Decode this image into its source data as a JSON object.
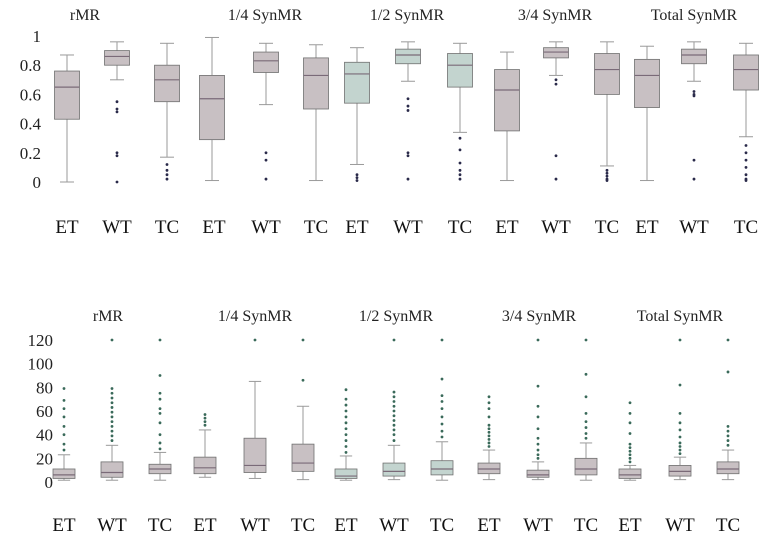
{
  "colors": {
    "box_fill": "#c8c0c3",
    "box_fill_alt": "#c3d4cf",
    "box_stroke": "#707070",
    "median": "#7a6a78",
    "whisker": "#9a9a9a",
    "outlier_top": "#2a2a4a",
    "outlier_bottom": "#3a6a5a"
  },
  "chart_data": [
    {
      "type": "boxplot",
      "name": "top-panel",
      "ylim": [
        0,
        1
      ],
      "yticks": [
        "0",
        "0.2",
        "0.4",
        "0.6",
        "0.8",
        "1"
      ],
      "ytick_values": [
        0,
        0.2,
        0.4,
        0.6,
        0.8,
        1
      ],
      "groups": [
        "rMR",
        "1/4 SynMR",
        "1/2 SynMR",
        "3/4 SynMR",
        "Total SynMR"
      ],
      "categories": [
        "ET",
        "WT",
        "TC"
      ],
      "boxes": [
        {
          "group": "rMR",
          "cat": "ET",
          "min": 0.0,
          "q1": 0.43,
          "median": 0.65,
          "q3": 0.76,
          "max": 0.87,
          "outliers": [],
          "alt": false
        },
        {
          "group": "rMR",
          "cat": "WT",
          "min": 0.7,
          "q1": 0.8,
          "median": 0.86,
          "q3": 0.9,
          "max": 0.96,
          "outliers": [
            0.5,
            0.48,
            0.55,
            0.2,
            0.18,
            0.0
          ],
          "alt": false
        },
        {
          "group": "rMR",
          "cat": "TC",
          "min": 0.17,
          "q1": 0.55,
          "median": 0.7,
          "q3": 0.8,
          "max": 0.95,
          "outliers": [
            0.12,
            0.08,
            0.05,
            0.02
          ],
          "alt": false
        },
        {
          "group": "1/4 SynMR",
          "cat": "ET",
          "min": 0.01,
          "q1": 0.29,
          "median": 0.57,
          "q3": 0.73,
          "max": 0.99,
          "outliers": [],
          "alt": false
        },
        {
          "group": "1/4 SynMR",
          "cat": "WT",
          "min": 0.53,
          "q1": 0.75,
          "median": 0.83,
          "q3": 0.89,
          "max": 0.95,
          "outliers": [
            0.2,
            0.15,
            0.02
          ],
          "alt": false
        },
        {
          "group": "1/4 SynMR",
          "cat": "TC",
          "min": 0.01,
          "q1": 0.5,
          "median": 0.73,
          "q3": 0.85,
          "max": 0.94,
          "outliers": [],
          "alt": false
        },
        {
          "group": "1/2 SynMR",
          "cat": "ET",
          "min": 0.12,
          "q1": 0.54,
          "median": 0.74,
          "q3": 0.82,
          "max": 0.92,
          "outliers": [
            0.05,
            0.03,
            0.01
          ],
          "alt": true
        },
        {
          "group": "1/2 SynMR",
          "cat": "WT",
          "min": 0.69,
          "q1": 0.81,
          "median": 0.87,
          "q3": 0.91,
          "max": 0.96,
          "outliers": [
            0.57,
            0.52,
            0.49,
            0.2,
            0.18,
            0.02
          ],
          "alt": true
        },
        {
          "group": "1/2 SynMR",
          "cat": "TC",
          "min": 0.34,
          "q1": 0.65,
          "median": 0.8,
          "q3": 0.88,
          "max": 0.95,
          "outliers": [
            0.3,
            0.22,
            0.13,
            0.08,
            0.05,
            0.02
          ],
          "alt": true
        },
        {
          "group": "3/4 SynMR",
          "cat": "ET",
          "min": 0.01,
          "q1": 0.35,
          "median": 0.63,
          "q3": 0.77,
          "max": 0.89,
          "outliers": [],
          "alt": false
        },
        {
          "group": "3/4 SynMR",
          "cat": "WT",
          "min": 0.73,
          "q1": 0.85,
          "median": 0.89,
          "q3": 0.92,
          "max": 0.96,
          "outliers": [
            0.7,
            0.67,
            0.18,
            0.02
          ],
          "alt": false
        },
        {
          "group": "3/4 SynMR",
          "cat": "TC",
          "min": 0.11,
          "q1": 0.6,
          "median": 0.77,
          "q3": 0.88,
          "max": 0.96,
          "outliers": [
            0.08,
            0.06,
            0.04,
            0.02,
            0.01
          ],
          "alt": false
        },
        {
          "group": "Total SynMR",
          "cat": "ET",
          "min": 0.01,
          "q1": 0.51,
          "median": 0.73,
          "q3": 0.84,
          "max": 0.93,
          "outliers": [],
          "alt": false
        },
        {
          "group": "Total SynMR",
          "cat": "WT",
          "min": 0.69,
          "q1": 0.81,
          "median": 0.87,
          "q3": 0.91,
          "max": 0.96,
          "outliers": [
            0.62,
            0.6,
            0.59,
            0.15,
            0.02
          ],
          "alt": false
        },
        {
          "group": "Total SynMR",
          "cat": "TC",
          "min": 0.31,
          "q1": 0.63,
          "median": 0.77,
          "q3": 0.87,
          "max": 0.95,
          "outliers": [
            0.25,
            0.2,
            0.15,
            0.1,
            0.05,
            0.02,
            0.01
          ],
          "alt": false
        }
      ]
    },
    {
      "type": "boxplot",
      "name": "bottom-panel",
      "ylim": [
        0,
        120
      ],
      "yticks": [
        "0",
        "20",
        "40",
        "60",
        "80",
        "100",
        "120"
      ],
      "ytick_values": [
        0,
        20,
        40,
        60,
        80,
        100,
        120
      ],
      "groups": [
        "rMR",
        "1/4 SynMR",
        "1/2 SynMR",
        "3/4 SynMR",
        "Total SynMR"
      ],
      "categories": [
        "ET",
        "WT",
        "TC"
      ],
      "boxes": [
        {
          "group": "rMR",
          "cat": "ET",
          "min": 1.5,
          "q1": 3,
          "median": 6,
          "q3": 11,
          "max": 23,
          "outliers": [
            27,
            32,
            40,
            47,
            55,
            62,
            69,
            79
          ],
          "alt": false
        },
        {
          "group": "rMR",
          "cat": "WT",
          "min": 1.5,
          "q1": 4,
          "median": 8,
          "q3": 17,
          "max": 31,
          "outliers": [
            35,
            39,
            43,
            47,
            51,
            55,
            59,
            63,
            67,
            71,
            75,
            79,
            120
          ],
          "alt": false
        },
        {
          "group": "rMR",
          "cat": "TC",
          "min": 1.5,
          "q1": 7,
          "median": 11,
          "q3": 15,
          "max": 25,
          "outliers": [
            28,
            33,
            40,
            50,
            58,
            62,
            70,
            75,
            90,
            120
          ],
          "alt": false
        },
        {
          "group": "1/4 SynMR",
          "cat": "ET",
          "min": 4,
          "q1": 7,
          "median": 12,
          "q3": 21,
          "max": 44,
          "outliers": [
            48,
            51,
            54,
            57
          ],
          "alt": false
        },
        {
          "group": "1/4 SynMR",
          "cat": "WT",
          "min": 3,
          "q1": 8,
          "median": 14,
          "q3": 37,
          "max": 85,
          "outliers": [
            120
          ],
          "alt": false
        },
        {
          "group": "1/4 SynMR",
          "cat": "TC",
          "min": 2,
          "q1": 9,
          "median": 16,
          "q3": 32,
          "max": 64,
          "outliers": [
            86,
            120
          ],
          "alt": false
        },
        {
          "group": "1/2 SynMR",
          "cat": "ET",
          "min": 1.5,
          "q1": 3,
          "median": 5,
          "q3": 11,
          "max": 22,
          "outliers": [
            25,
            30,
            35,
            40,
            45,
            50,
            55,
            60,
            65,
            70,
            78
          ],
          "alt": true
        },
        {
          "group": "1/2 SynMR",
          "cat": "WT",
          "min": 2,
          "q1": 5,
          "median": 9,
          "q3": 16,
          "max": 31,
          "outliers": [
            35,
            40,
            44,
            48,
            52,
            56,
            60,
            64,
            68,
            72,
            76,
            120
          ],
          "alt": true
        },
        {
          "group": "1/2 SynMR",
          "cat": "TC",
          "min": 1.5,
          "q1": 6,
          "median": 11,
          "q3": 18,
          "max": 34,
          "outliers": [
            38,
            43,
            49,
            55,
            62,
            68,
            73,
            87,
            120
          ],
          "alt": true
        },
        {
          "group": "3/4 SynMR",
          "cat": "ET",
          "min": 2,
          "q1": 7,
          "median": 11,
          "q3": 16,
          "max": 27,
          "outliers": [
            30,
            33,
            36,
            39,
            42,
            45,
            48,
            55,
            62,
            67,
            72
          ],
          "alt": false
        },
        {
          "group": "3/4 SynMR",
          "cat": "WT",
          "min": 2,
          "q1": 4,
          "median": 6,
          "q3": 10,
          "max": 17,
          "outliers": [
            20,
            23,
            27,
            32,
            37,
            45,
            55,
            64,
            81,
            120
          ],
          "alt": false
        },
        {
          "group": "3/4 SynMR",
          "cat": "TC",
          "min": 1.5,
          "q1": 6,
          "median": 11,
          "q3": 20,
          "max": 33,
          "outliers": [
            37,
            41,
            46,
            51,
            58,
            72,
            91,
            120
          ],
          "alt": false
        },
        {
          "group": "Total SynMR",
          "cat": "ET",
          "min": 1.5,
          "q1": 3,
          "median": 6,
          "q3": 11,
          "max": 14,
          "outliers": [
            17,
            20,
            23,
            26,
            29,
            32,
            41,
            50,
            58,
            67
          ],
          "alt": false
        },
        {
          "group": "Total SynMR",
          "cat": "WT",
          "min": 2,
          "q1": 5,
          "median": 9,
          "q3": 14,
          "max": 21,
          "outliers": [
            24,
            27,
            30,
            33,
            38,
            44,
            50,
            58,
            82,
            120
          ],
          "alt": false
        },
        {
          "group": "Total SynMR",
          "cat": "TC",
          "min": 2,
          "q1": 7,
          "median": 11,
          "q3": 17,
          "max": 27,
          "outliers": [
            31,
            35,
            39,
            43,
            47,
            93,
            120
          ],
          "alt": false
        }
      ]
    }
  ]
}
